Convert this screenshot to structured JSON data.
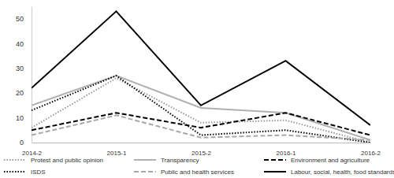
{
  "chart_data": {
    "type": "line",
    "categories": [
      "2014-2",
      "2015-1",
      "2015-2",
      "2016-1",
      "2016-2"
    ],
    "series": [
      {
        "name": "Protest and public opinion",
        "color": "#9a9a9a",
        "line_style": "dotted",
        "values": [
          6,
          26,
          8,
          9,
          0
        ]
      },
      {
        "name": "Transparency",
        "color": "#b0b0b0",
        "line_style": "solid",
        "values": [
          15,
          27,
          14,
          12,
          1
        ]
      },
      {
        "name": "Environment and agriculture",
        "color": "#000000",
        "line_style": "dashed",
        "values": [
          5,
          12,
          6,
          12,
          3
        ]
      },
      {
        "name": "ISDS",
        "color": "#000000",
        "line_style": "dotted",
        "values": [
          13,
          27,
          3,
          5,
          0
        ]
      },
      {
        "name": "Public and health services",
        "color": "#a8a8a8",
        "line_style": "dashed",
        "values": [
          3,
          11,
          2,
          3,
          1
        ]
      },
      {
        "name": "Labour, social, health, food standards",
        "color": "#000000",
        "line_style": "solid",
        "values": [
          22,
          53,
          15,
          33,
          7
        ]
      }
    ],
    "ylim": [
      0,
      55
    ],
    "yticks": [
      0,
      10,
      20,
      30,
      40,
      50
    ],
    "grid": false,
    "legend": "bottom"
  }
}
